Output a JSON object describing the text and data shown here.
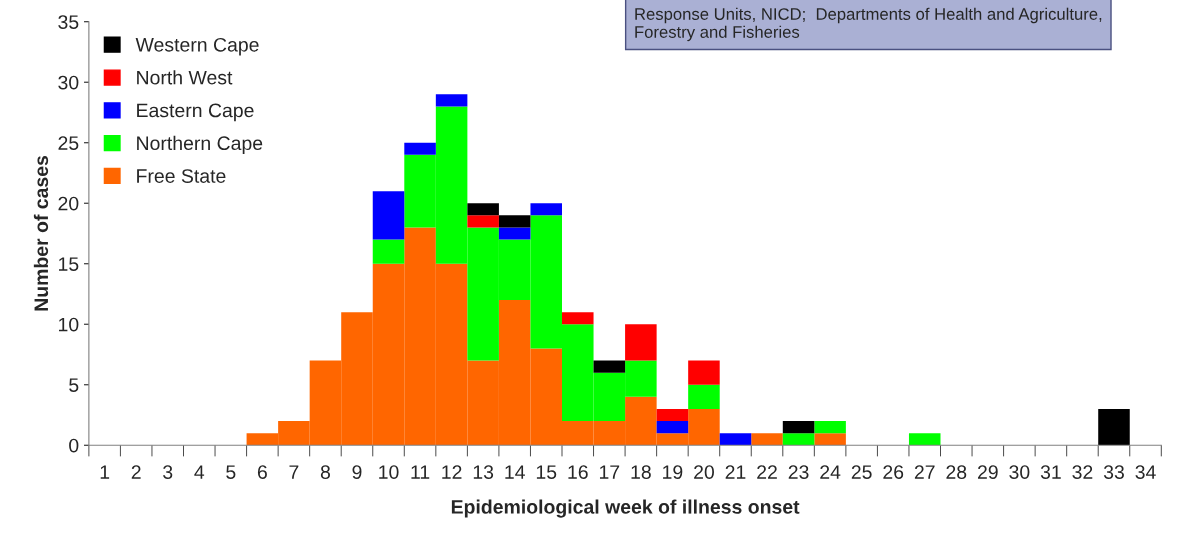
{
  "chart_data": {
    "type": "bar",
    "stacked": true,
    "xlabel": "Epidemiological week of illness onset",
    "ylabel": "Number of cases",
    "categories": [
      "1",
      "2",
      "3",
      "4",
      "5",
      "6",
      "7",
      "8",
      "9",
      "10",
      "11",
      "12",
      "13",
      "14",
      "15",
      "16",
      "17",
      "18",
      "19",
      "20",
      "21",
      "22",
      "23",
      "24",
      "25",
      "26",
      "27",
      "28",
      "29",
      "30",
      "31",
      "32",
      "33",
      "34"
    ],
    "series": [
      {
        "name": "Free State",
        "color": "#ff6600",
        "values": [
          0,
          0,
          0,
          0,
          0,
          1,
          2,
          7,
          11,
          15,
          18,
          15,
          7,
          12,
          8,
          2,
          2,
          4,
          1,
          3,
          0,
          1,
          0,
          1,
          0,
          0,
          0,
          0,
          0,
          0,
          0,
          0,
          0,
          0
        ]
      },
      {
        "name": "Northern Cape",
        "color": "#00ff00",
        "values": [
          0,
          0,
          0,
          0,
          0,
          0,
          0,
          0,
          0,
          2,
          6,
          13,
          11,
          5,
          11,
          8,
          4,
          3,
          0,
          2,
          0,
          0,
          1,
          1,
          0,
          0,
          1,
          0,
          0,
          0,
          0,
          0,
          0,
          0
        ]
      },
      {
        "name": "Eastern Cape",
        "color": "#0000ff",
        "values": [
          0,
          0,
          0,
          0,
          0,
          0,
          0,
          0,
          0,
          4,
          1,
          1,
          0,
          1,
          1,
          0,
          0,
          0,
          1,
          0,
          1,
          0,
          0,
          0,
          0,
          0,
          0,
          0,
          0,
          0,
          0,
          0,
          0,
          0
        ]
      },
      {
        "name": "North West",
        "color": "#ff0000",
        "values": [
          0,
          0,
          0,
          0,
          0,
          0,
          0,
          0,
          0,
          0,
          0,
          0,
          1,
          0,
          0,
          1,
          0,
          3,
          1,
          2,
          0,
          0,
          0,
          0,
          0,
          0,
          0,
          0,
          0,
          0,
          0,
          0,
          0,
          0
        ]
      },
      {
        "name": "Western Cape",
        "color": "#000000",
        "values": [
          0,
          0,
          0,
          0,
          0,
          0,
          0,
          0,
          0,
          0,
          0,
          0,
          1,
          1,
          0,
          0,
          1,
          0,
          0,
          0,
          0,
          0,
          1,
          0,
          0,
          0,
          0,
          0,
          0,
          0,
          0,
          0,
          3,
          0
        ]
      }
    ],
    "ylim": [
      0,
      35
    ],
    "yticks": [
      0,
      5,
      10,
      15,
      20,
      25,
      30,
      35
    ],
    "legend": "top left",
    "grid": false,
    "annotations": [
      "Response Units, NICD;  Departments of Health and Agriculture,\nForestry and Fisheries"
    ]
  }
}
